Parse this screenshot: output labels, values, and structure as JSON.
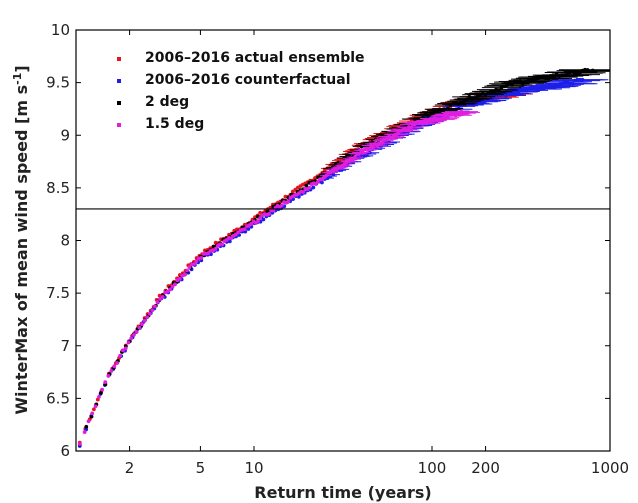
{
  "chart_data": {
    "type": "scatter",
    "xlabel": "Return time (years)",
    "ylabel": "WinterMax of mean wind speed [m s",
    "ylabel_sup": "-1",
    "ylabel_end": "]",
    "x_scale": "log",
    "xlim": [
      1,
      1000
    ],
    "ylim": [
      6,
      10
    ],
    "x_ticks": [
      2,
      5,
      10,
      100,
      200,
      1000
    ],
    "x_tick_labels": [
      "2",
      "5",
      "10",
      "100",
      "200",
      "1000"
    ],
    "y_ticks": [
      6,
      6.5,
      7,
      7.5,
      8,
      8.5,
      9,
      9.5,
      10
    ],
    "y_tick_labels": [
      "6",
      "6.5",
      "7",
      "7.5",
      "8",
      "8.5",
      "9",
      "9.5",
      "10"
    ],
    "grid": false,
    "legend_position": "top-left",
    "reference_line": {
      "y": 8.3,
      "color": "#000000"
    },
    "series": [
      {
        "name": "2006–2016 actual ensemble",
        "color": "#e8141e",
        "x": [
          1.05,
          1.2,
          1.5,
          2,
          3,
          5,
          8,
          12,
          20,
          40,
          80,
          150,
          300
        ],
        "y": [
          6.08,
          6.32,
          6.7,
          7.06,
          7.48,
          7.87,
          8.1,
          8.3,
          8.55,
          8.9,
          9.15,
          9.32,
          9.4
        ]
      },
      {
        "name": "2006–2016 counterfactual",
        "color": "#1e1eea",
        "x": [
          1.05,
          1.2,
          1.5,
          2,
          3,
          5,
          8,
          12,
          20,
          40,
          80,
          150,
          300,
          700
        ],
        "y": [
          6.05,
          6.3,
          6.68,
          7.04,
          7.44,
          7.82,
          8.04,
          8.24,
          8.48,
          8.8,
          9.08,
          9.28,
          9.42,
          9.52
        ]
      },
      {
        "name": "2 deg",
        "color": "#000000",
        "x": [
          1.05,
          1.2,
          1.5,
          2,
          3,
          5,
          8,
          12,
          20,
          40,
          80,
          150,
          300,
          800
        ],
        "y": [
          6.06,
          6.31,
          6.69,
          7.05,
          7.46,
          7.85,
          8.08,
          8.28,
          8.53,
          8.88,
          9.14,
          9.33,
          9.5,
          9.62
        ]
      },
      {
        "name": "1.5 deg",
        "color": "#e01ee0",
        "x": [
          1.05,
          1.2,
          1.5,
          2,
          3,
          5,
          8,
          12,
          20,
          40,
          80,
          150
        ],
        "y": [
          6.06,
          6.31,
          6.69,
          7.05,
          7.46,
          7.84,
          8.06,
          8.26,
          8.5,
          8.84,
          9.1,
          9.22
        ]
      }
    ]
  }
}
